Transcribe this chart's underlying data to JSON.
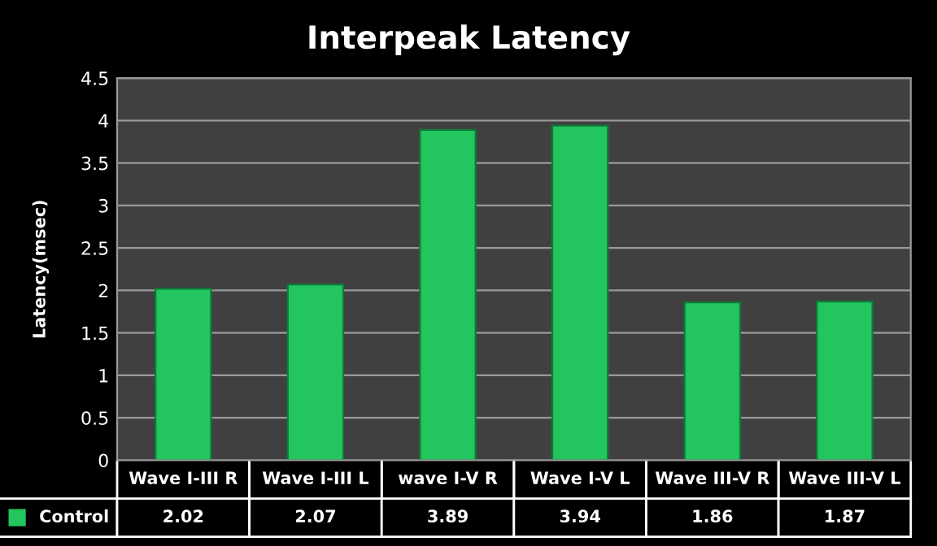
{
  "chart_data": {
    "type": "bar",
    "title": "Interpeak Latency",
    "ylabel": "Latency(msec)",
    "categories": [
      "Wave I-III R",
      "Wave I-III L",
      "wave I-V R",
      "Wave I-V L",
      "Wave III-V R",
      "Wave III-V L"
    ],
    "series": [
      {
        "name": "Control",
        "color": "#22c55e",
        "values": [
          2.02,
          2.07,
          3.89,
          3.94,
          1.86,
          1.87
        ]
      }
    ],
    "ylim": [
      0,
      4.5
    ],
    "yticks": [
      0,
      0.5,
      1,
      1.5,
      2,
      2.5,
      3,
      3.5,
      4,
      4.5
    ],
    "grid": "y",
    "data_labels": true,
    "legend": "bottom"
  }
}
